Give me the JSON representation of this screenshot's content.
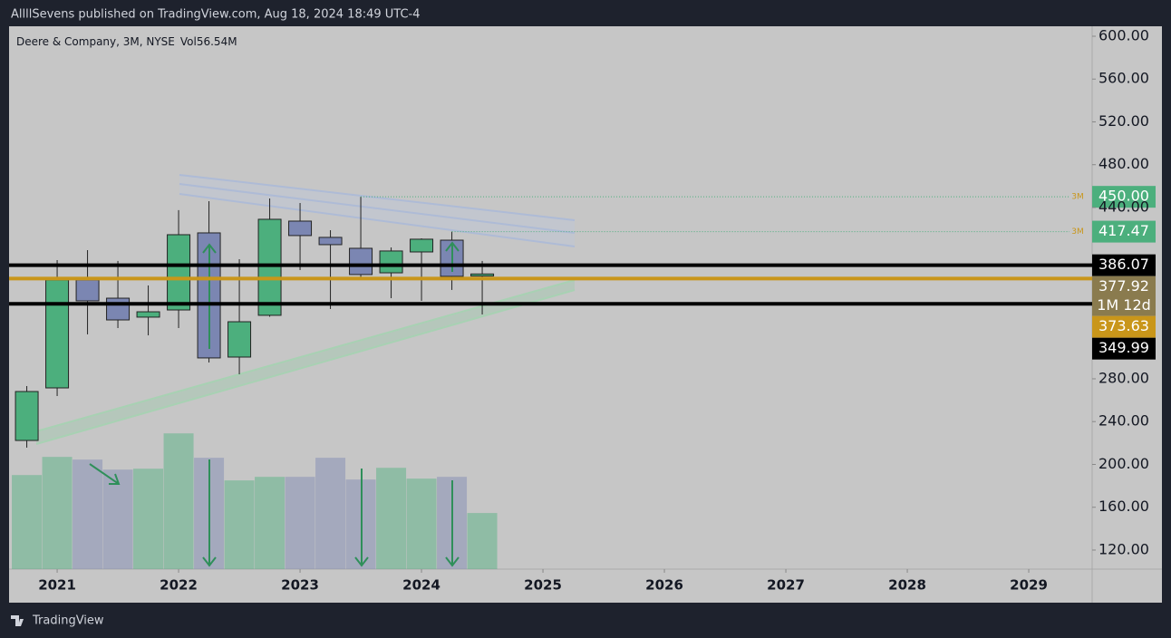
{
  "header": {
    "text": "AllllSevens published on TradingView.com, Aug 18, 2024 18:49 UTC-4"
  },
  "footer": {
    "brand": "TradingView"
  },
  "chart_data": {
    "type": "candlestick",
    "title": "Deere & Company, 3M, NYSE",
    "x": [
      2020.75,
      2021,
      2021.25,
      2021.5,
      2021.75,
      2022,
      2022.25,
      2022.5,
      2022.75,
      2023,
      2023.25,
      2023.5,
      2023.75,
      2024,
      2024.25,
      2024.5
    ],
    "open": [
      222.4,
      271.5,
      372.3,
      355.3,
      337.6,
      344.3,
      416.3,
      300.3,
      339.3,
      427.3,
      412.1,
      401.9,
      379.0,
      398.5,
      409.5,
      376.0
    ],
    "high": [
      273.2,
      390.9,
      400.2,
      390.1,
      367.2,
      437.5,
      445.9,
      391.7,
      448.5,
      444.2,
      418.8,
      450.0,
      402.7,
      411.2,
      417.47,
      390.1
    ],
    "low": [
      215.7,
      263.9,
      321.5,
      327.4,
      320.6,
      327.4,
      295.2,
      284.2,
      338.0,
      381.6,
      345.2,
      373.1,
      355.3,
      352.8,
      363.0,
      340.1
    ],
    "close": [
      268.1,
      372.3,
      352.8,
      335.0,
      342.6,
      414.6,
      299.5,
      333.3,
      429.0,
      413.8,
      405.3,
      377.4,
      399.4,
      410.4,
      375.7,
      377.92
    ],
    "colors": {
      "up": "#4caf7d",
      "down": "#7b86b2"
    },
    "volume": {
      "name": "Vol",
      "values": [
        94.8,
        113.1,
        110.4,
        100.3,
        101.2,
        136.8,
        112.2,
        89.4,
        93.0,
        93.0,
        112.2,
        90.3,
        102.1,
        91.2,
        93.0,
        56.54
      ],
      "last_label": "56.54M",
      "ylim": [
        0,
        200
      ]
    },
    "xlim": [
      2020.604,
      2029.522
    ],
    "xticks": [
      2021,
      2022,
      2023,
      2024,
      2025,
      2026,
      2027,
      2028,
      2029
    ],
    "ylim": [
      102.2,
      609.3
    ],
    "yticks": [
      {
        "value": 120,
        "label": "120.00"
      },
      {
        "value": 160,
        "label": "160.00"
      },
      {
        "value": 200,
        "label": "200.00"
      },
      {
        "value": 240,
        "label": "240.00"
      },
      {
        "value": 280,
        "label": "280.00"
      },
      {
        "value": 440,
        "label": "440.00"
      },
      {
        "value": 480,
        "label": "480.00"
      },
      {
        "value": 520,
        "label": "520.00"
      },
      {
        "value": 560,
        "label": "560.00"
      },
      {
        "value": 600,
        "label": "600.00"
      }
    ],
    "price_lines": [
      {
        "value": 450,
        "label": "450.00",
        "color": "#4caf7d",
        "style": "dotted",
        "tag": "3M"
      },
      {
        "value": 417.47,
        "label": "417.47",
        "color": "#4caf7d",
        "style": "dotted",
        "tag": "3M"
      },
      {
        "value": 386.07,
        "label": "386.07",
        "color": "#000000",
        "style": "solid"
      },
      {
        "value": 377.92,
        "label": "377.92",
        "color": "#8a7b4e",
        "style": "none",
        "countdown": "1M 12d"
      },
      {
        "value": 373.63,
        "label": "373.63",
        "color": "#c9961a",
        "style": "solid"
      },
      {
        "value": 349.99,
        "label": "349.99",
        "color": "#000000",
        "style": "solid"
      }
    ]
  }
}
